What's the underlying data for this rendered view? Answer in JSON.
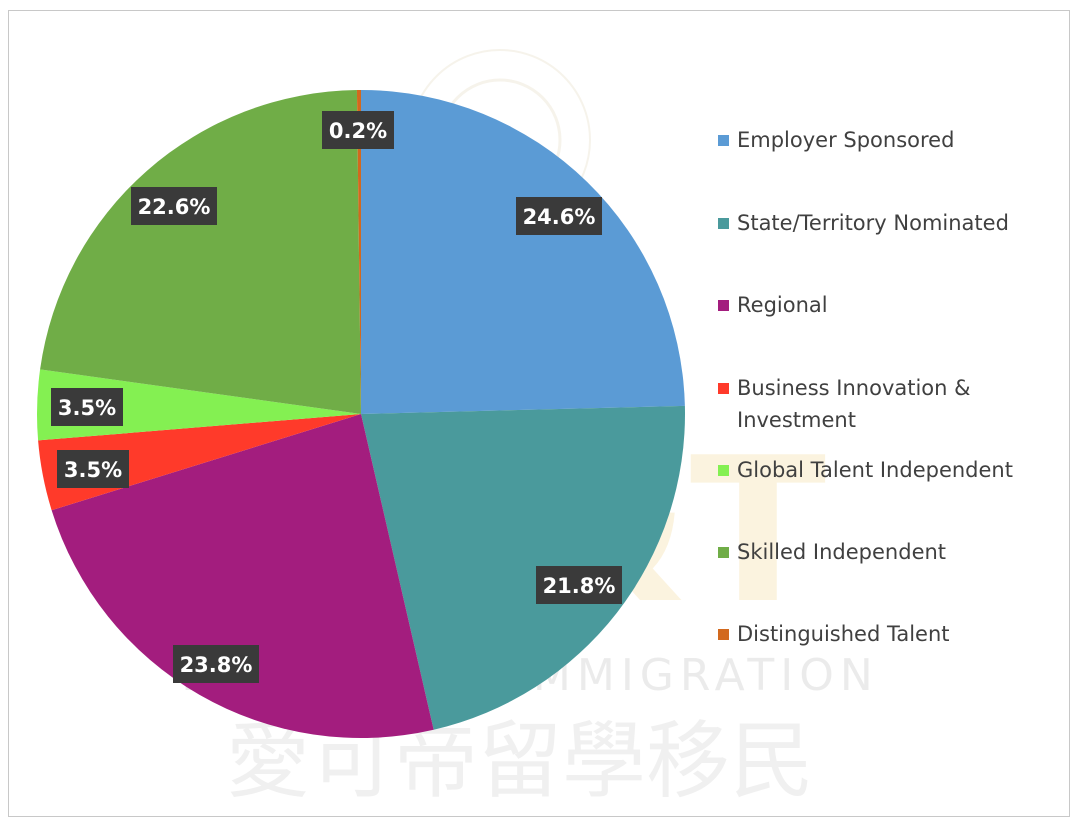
{
  "chart_data": {
    "type": "pie",
    "title": "",
    "legend_position": "right",
    "slices": [
      {
        "label": "Employer Sponsored",
        "value": 24.6,
        "display": "24.6%",
        "color": "#5b9bd5"
      },
      {
        "label": "State/Territory Nominated",
        "value": 21.8,
        "display": "21.8%",
        "color": "#4a9a9c"
      },
      {
        "label": "Regional",
        "value": 23.8,
        "display": "23.8%",
        "color": "#a31d7e"
      },
      {
        "label": "Business Innovation & Investment",
        "value": 3.5,
        "display": "3.5%",
        "color": "#ff3a2a"
      },
      {
        "label": "Global Talent Independent",
        "value": 3.5,
        "display": "3.5%",
        "color": "#84f052"
      },
      {
        "label": "Skilled Independent",
        "value": 22.6,
        "display": "22.6%",
        "color": "#70ad47"
      },
      {
        "label": "Distinguished Talent",
        "value": 0.2,
        "display": "0.2%",
        "color": "#d2691e"
      }
    ]
  },
  "watermark": {
    "logo_letters": "AC&T",
    "tagline": "EDUCATION IMMIGRATION",
    "chinese": "愛可帝留學移民"
  }
}
